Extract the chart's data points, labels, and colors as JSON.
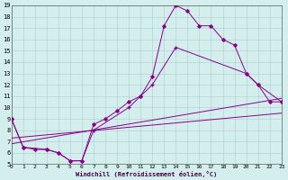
{
  "bg_color": "#d4eeee",
  "line_color": "#880088",
  "grid_color": "#aacccc",
  "xlabel": "Windchill (Refroidissement éolien,°C)",
  "xlim": [
    0,
    23
  ],
  "ylim": [
    5,
    19
  ],
  "yticks": [
    5,
    6,
    7,
    8,
    9,
    10,
    11,
    12,
    13,
    14,
    15,
    16,
    17,
    18,
    19
  ],
  "xticks": [
    0,
    1,
    2,
    3,
    4,
    5,
    6,
    7,
    8,
    9,
    10,
    11,
    12,
    13,
    14,
    15,
    16,
    17,
    18,
    19,
    20,
    21,
    22,
    23
  ],
  "line1_x": [
    0,
    1,
    2,
    3,
    4,
    5,
    6,
    7,
    8,
    9,
    10,
    11,
    12,
    13,
    14,
    15,
    16,
    17,
    18,
    19,
    20,
    21,
    22,
    23
  ],
  "line1_y": [
    9.0,
    6.5,
    6.3,
    6.3,
    6.0,
    5.3,
    5.3,
    8.5,
    9.0,
    9.7,
    10.5,
    11.0,
    12.7,
    17.2,
    19.0,
    18.5,
    17.2,
    17.2,
    16.0,
    15.5,
    13.0,
    12.0,
    10.5,
    10.5
  ],
  "line2_x": [
    0,
    1,
    3,
    4,
    5,
    6,
    7,
    10,
    11,
    12,
    14,
    20,
    21,
    23
  ],
  "line2_y": [
    9.0,
    6.5,
    6.3,
    6.0,
    5.3,
    5.3,
    8.0,
    10.0,
    11.0,
    12.0,
    15.3,
    13.0,
    12.0,
    10.5
  ],
  "line3_x": [
    0,
    23
  ],
  "line3_y": [
    6.8,
    10.8
  ],
  "line4_x": [
    0,
    23
  ],
  "line4_y": [
    7.3,
    9.5
  ]
}
